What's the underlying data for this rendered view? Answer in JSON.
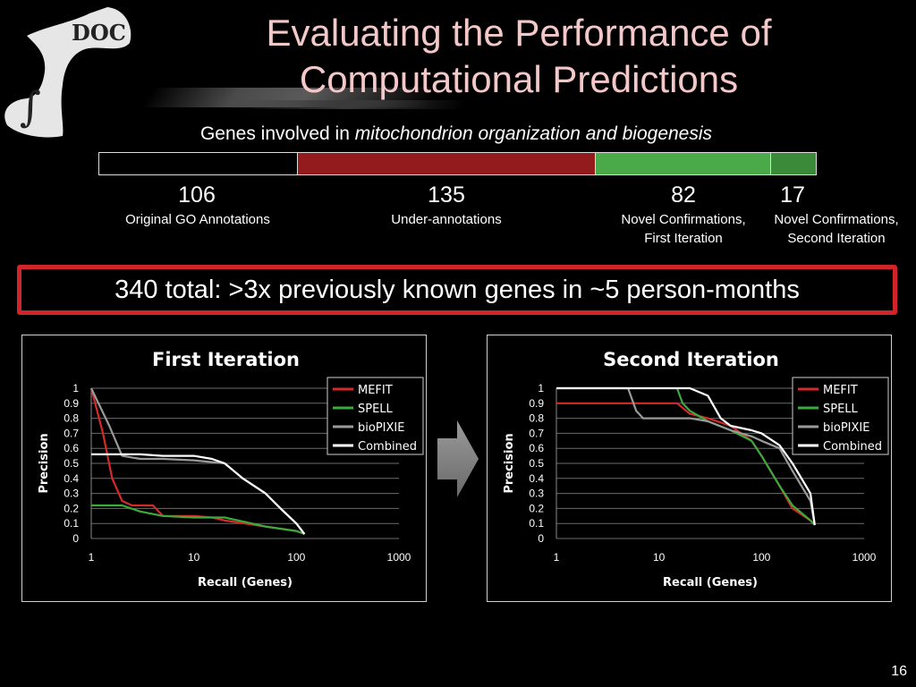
{
  "slide": {
    "title_line1": "Evaluating the Performance of",
    "title_line2": "Computational Predictions",
    "page_number": "16",
    "logo_text": "DOC",
    "banner": "340 total: >3x previously known genes in ~5 person-months"
  },
  "bar": {
    "title_prefix": "Genes involved in ",
    "title_italic": "mitochondrion organization and biogenesis",
    "segments": [
      {
        "value": "106",
        "label1": "Original GO Annotations",
        "label2": "",
        "color": "#000000"
      },
      {
        "value": "135",
        "label1": "Under-annotations",
        "label2": "",
        "color": "#931a1d"
      },
      {
        "value": "82",
        "label1": "Novel Confirmations,",
        "label2": "First Iteration",
        "color": "#4aaa4a"
      },
      {
        "value": "17",
        "label1": "Novel Confirmations,",
        "label2": "Second Iteration",
        "color": "#3a8a3a"
      }
    ]
  },
  "colors": {
    "title": "#f4c8c8",
    "banner_border": "#d0232a",
    "mefit": "#d42a2a",
    "spell": "#3caa3c",
    "biopixie": "#9a9a9a",
    "combined": "#ffffff"
  },
  "chart_data": [
    {
      "type": "line",
      "title": "First Iteration",
      "xlabel": "Recall (Genes)",
      "ylabel": "Precision",
      "xscale": "log",
      "xlim": [
        1,
        1000
      ],
      "ylim": [
        0,
        1
      ],
      "xticks": [
        "1",
        "10",
        "100",
        "1000"
      ],
      "yticks": [
        "0",
        "0.1",
        "0.2",
        "0.3",
        "0.4",
        "0.5",
        "0.6",
        "0.7",
        "0.8",
        "0.9",
        "1"
      ],
      "grid": true,
      "legend": "top-right",
      "series": [
        {
          "name": "MEFIT",
          "color": "#d42a2a",
          "x": [
            1,
            1.3,
            1.6,
            2,
            2.5,
            3,
            4,
            5,
            10,
            15,
            20,
            50,
            100,
            120
          ],
          "y": [
            1,
            0.7,
            0.4,
            0.25,
            0.22,
            0.22,
            0.22,
            0.15,
            0.15,
            0.14,
            0.12,
            0.08,
            0.05,
            0.03
          ]
        },
        {
          "name": "SPELL",
          "color": "#3caa3c",
          "x": [
            1,
            2,
            3,
            5,
            10,
            20,
            50,
            100,
            120
          ],
          "y": [
            0.22,
            0.22,
            0.18,
            0.15,
            0.14,
            0.14,
            0.08,
            0.05,
            0.03
          ]
        },
        {
          "name": "bioPIXIE",
          "color": "#9a9a9a",
          "x": [
            1,
            1.5,
            2,
            3,
            5,
            10,
            20,
            30,
            50,
            70,
            100,
            120
          ],
          "y": [
            1,
            0.75,
            0.55,
            0.53,
            0.53,
            0.52,
            0.5,
            0.4,
            0.3,
            0.2,
            0.1,
            0.03
          ]
        },
        {
          "name": "Combined",
          "color": "#ffffff",
          "x": [
            1,
            3,
            5,
            10,
            15,
            20,
            30,
            50,
            70,
            100,
            120
          ],
          "y": [
            0.56,
            0.56,
            0.55,
            0.55,
            0.53,
            0.5,
            0.4,
            0.3,
            0.2,
            0.1,
            0.03
          ]
        }
      ]
    },
    {
      "type": "line",
      "title": "Second Iteration",
      "xlabel": "Recall (Genes)",
      "ylabel": "Precision",
      "xscale": "log",
      "xlim": [
        1,
        1000
      ],
      "ylim": [
        0,
        1
      ],
      "xticks": [
        "1",
        "10",
        "100",
        "1000"
      ],
      "yticks": [
        "0",
        "0.1",
        "0.2",
        "0.3",
        "0.4",
        "0.5",
        "0.6",
        "0.7",
        "0.8",
        "0.9",
        "1"
      ],
      "grid": true,
      "legend": "top-right",
      "series": [
        {
          "name": "MEFIT",
          "color": "#d42a2a",
          "x": [
            1,
            15,
            20,
            30,
            50,
            80,
            100,
            150,
            200,
            300,
            330
          ],
          "y": [
            0.9,
            0.9,
            0.83,
            0.8,
            0.75,
            0.65,
            0.55,
            0.35,
            0.2,
            0.12,
            0.09
          ]
        },
        {
          "name": "SPELL",
          "color": "#3caa3c",
          "x": [
            15,
            17,
            20,
            30,
            50,
            80,
            100,
            150,
            200,
            300,
            330
          ],
          "y": [
            1,
            0.9,
            0.85,
            0.78,
            0.72,
            0.65,
            0.55,
            0.35,
            0.22,
            0.12,
            0.09
          ]
        },
        {
          "name": "bioPIXIE",
          "color": "#9a9a9a",
          "x": [
            1,
            5,
            6,
            7,
            10,
            20,
            30,
            50,
            80,
            100,
            150,
            200,
            300,
            330
          ],
          "y": [
            1,
            1,
            0.85,
            0.8,
            0.8,
            0.8,
            0.78,
            0.72,
            0.68,
            0.65,
            0.6,
            0.45,
            0.25,
            0.09
          ]
        },
        {
          "name": "Combined",
          "color": "#ffffff",
          "x": [
            1,
            20,
            30,
            40,
            50,
            80,
            100,
            150,
            200,
            300,
            330
          ],
          "y": [
            1,
            1,
            0.95,
            0.8,
            0.75,
            0.72,
            0.7,
            0.62,
            0.5,
            0.3,
            0.09
          ]
        }
      ]
    }
  ]
}
